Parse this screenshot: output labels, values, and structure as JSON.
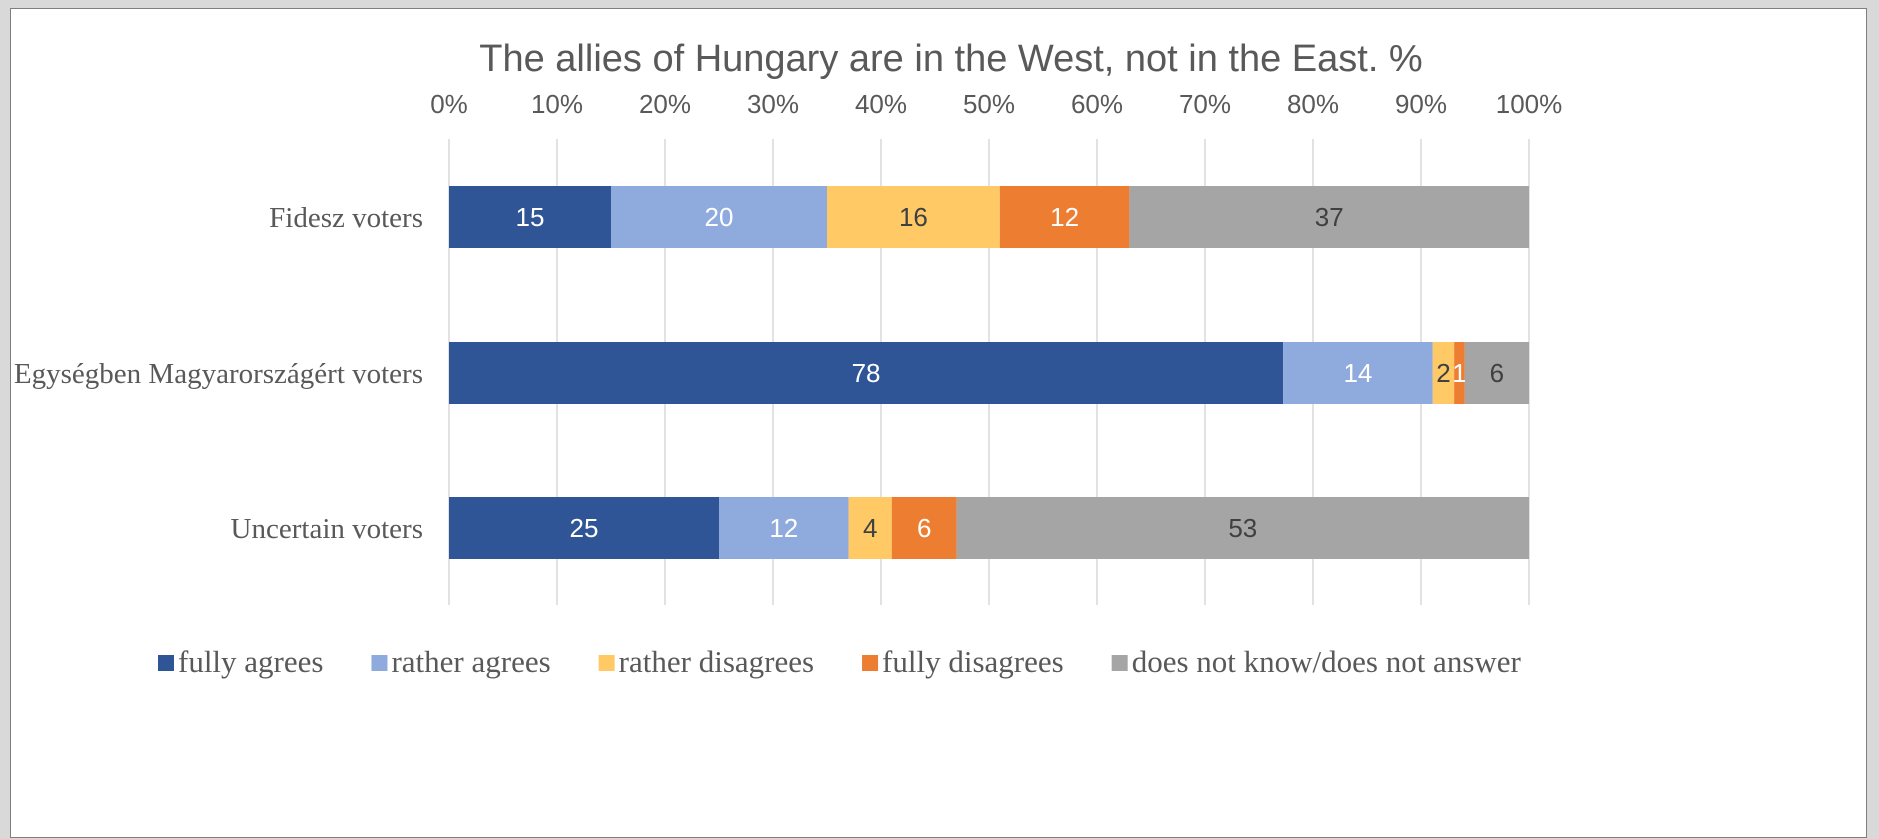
{
  "chart_data": {
    "type": "bar",
    "orientation": "horizontal",
    "stacked": "percent",
    "title": "The allies of Hungary are in the West, not in the East. %",
    "categories": [
      "Fidesz voters",
      "Egységben Magyarországért voters",
      "Uncertain voters"
    ],
    "series": [
      {
        "name": "fully agrees",
        "color": "#2f5597",
        "label_color": "#ffffff",
        "values": [
          15,
          78,
          25
        ]
      },
      {
        "name": "rather agrees",
        "color": "#8faadc",
        "label_color": "#ffffff",
        "values": [
          20,
          14,
          12
        ]
      },
      {
        "name": "rather disagrees",
        "color": "#ffc966",
        "label_color": "#404040",
        "values": [
          16,
          2,
          4
        ]
      },
      {
        "name": "fully disagrees",
        "color": "#ed7d31",
        "label_color": "#ffffff",
        "values": [
          12,
          1,
          6
        ]
      },
      {
        "name": "does not know/does not answer",
        "color": "#a5a5a5",
        "label_color": "#404040",
        "values": [
          37,
          6,
          53
        ]
      }
    ],
    "xaxis_ticks": [
      "0%",
      "10%",
      "20%",
      "30%",
      "40%",
      "50%",
      "60%",
      "70%",
      "80%",
      "90%",
      "100%"
    ],
    "xaxis_position": "top",
    "xlim": [
      0,
      100
    ],
    "grid": true,
    "legend_position": "bottom"
  }
}
